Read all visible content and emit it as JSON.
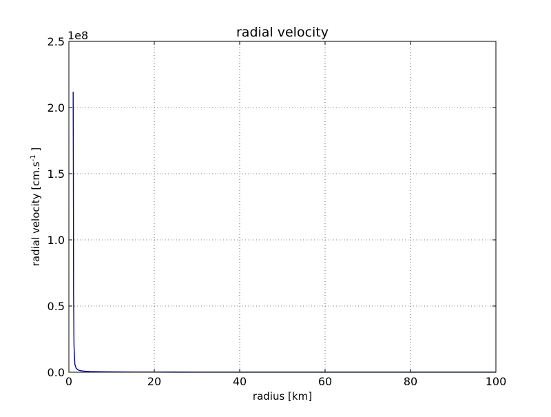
{
  "chart_data": {
    "type": "line",
    "title": "radial velocity",
    "xlabel": "radius [km]",
    "ylabel": {
      "prefix": "radial velocity [cm.s",
      "superscript": "-1",
      "suffix": " ]"
    },
    "xlim": [
      0,
      100
    ],
    "ylim": [
      0,
      250000000
    ],
    "y_offset_text": "1e8",
    "grid": true,
    "x_ticks": [
      0,
      20,
      40,
      60,
      80,
      100
    ],
    "x_tick_labels": [
      "0",
      "20",
      "40",
      "60",
      "80",
      "100"
    ],
    "y_ticks": [
      0,
      50000000,
      100000000,
      150000000,
      200000000,
      250000000
    ],
    "y_tick_labels": [
      "0.0",
      "0.5",
      "1.0",
      "1.5",
      "2.0",
      "2.5"
    ],
    "series": [
      {
        "color": "#0000aa",
        "x": [
          1.0,
          1.05,
          1.1,
          1.2,
          1.4,
          1.7,
          2.0,
          2.5,
          3.0,
          4.0,
          5.0,
          6.0,
          8.0,
          10.0,
          15.0,
          20.0,
          30.0,
          40.0,
          50.0,
          60.0,
          70.0,
          80.0,
          90.0,
          100.0
        ],
        "y": [
          212000000,
          150000000,
          60000000,
          20000000,
          6000000,
          3000000,
          2000000,
          1300000,
          1000000,
          700000,
          500000,
          400000,
          300000,
          200000,
          120000,
          80000,
          50000,
          35000,
          25000,
          20000,
          15000,
          12000,
          10000,
          8000
        ]
      }
    ]
  }
}
